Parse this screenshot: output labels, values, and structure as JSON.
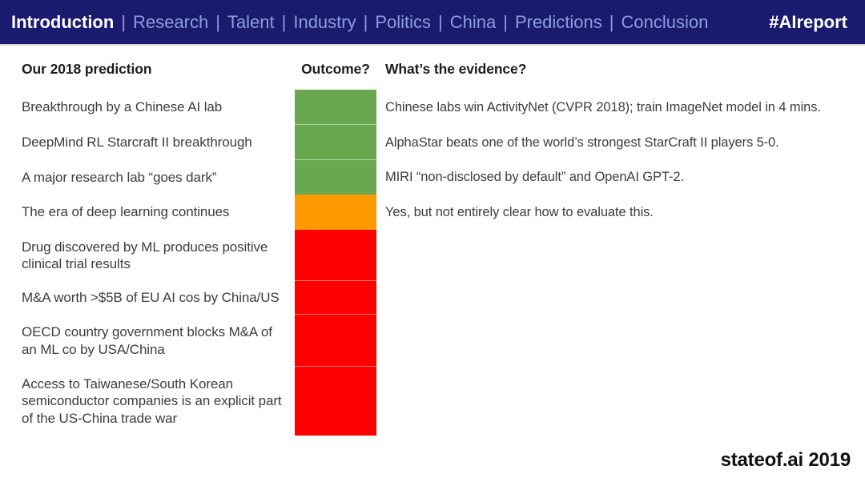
{
  "nav": {
    "items": [
      "Introduction",
      "Research",
      "Talent",
      "Industry",
      "Politics",
      "China",
      "Predictions",
      "Conclusion"
    ],
    "active_item": "Introduction",
    "separator": "|",
    "hashtag": "#AIreport"
  },
  "colors": {
    "navbar_bg": "#1a1a6e",
    "nav_inactive": "#8e9ddf",
    "nav_active": "#ffffff",
    "outcome_green": "#6aa84f",
    "outcome_amber": "#ff9900",
    "outcome_red": "#ff0000"
  },
  "table": {
    "headers": [
      "Our 2018 prediction",
      "Outcome?",
      "What’s the evidence?"
    ],
    "rows": [
      {
        "prediction": "Breakthrough by a Chinese AI lab",
        "outcome": "green",
        "outcome_color": "#6aa84f",
        "evidence": "Chinese labs win ActivityNet (CVPR 2018); train ImageNet model in 4 mins."
      },
      {
        "prediction": "DeepMind RL Starcraft II breakthrough",
        "outcome": "green",
        "outcome_color": "#6aa84f",
        "evidence": "AlphaStar beats one of the world’s strongest StarCraft II players 5-0."
      },
      {
        "prediction": "A major research lab “goes dark”",
        "outcome": "green",
        "outcome_color": "#6aa84f",
        "evidence": "MIRI “non-disclosed by default” and OpenAI GPT-2."
      },
      {
        "prediction": "The era of deep learning continues",
        "outcome": "amber",
        "outcome_color": "#ff9900",
        "evidence": "Yes, but not entirely clear how to evaluate this."
      },
      {
        "prediction": "Drug discovered by ML produces positive clinical trial results",
        "outcome": "red",
        "outcome_color": "#ff0000",
        "evidence": ""
      },
      {
        "prediction": "M&A worth >$5B of EU AI cos by China/US",
        "outcome": "red",
        "outcome_color": "#ff0000",
        "evidence": ""
      },
      {
        "prediction": "OECD country government blocks M&A of an ML co by USA/China",
        "outcome": "red",
        "outcome_color": "#ff0000",
        "evidence": ""
      },
      {
        "prediction": "Access to Taiwanese/South Korean semiconductor companies is an explicit part of the US-China trade war",
        "outcome": "red",
        "outcome_color": "#ff0000",
        "evidence": ""
      }
    ]
  },
  "footer": {
    "brand": "stateof.ai 2019"
  }
}
